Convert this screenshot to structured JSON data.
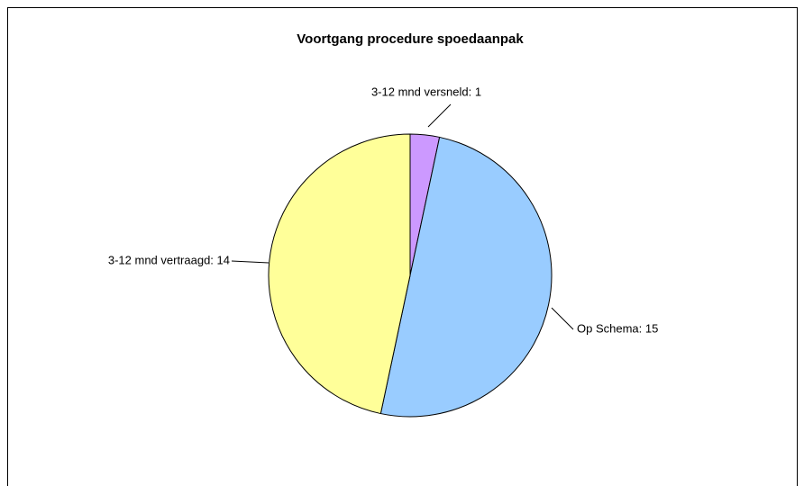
{
  "chart_data": {
    "type": "pie",
    "title": "Voortgang procedure spoedaanpak",
    "labels": [
      "3-12 mnd versneld: 1",
      "Op Schema: 15",
      "3-12 mnd vertraagd: 14"
    ],
    "values": [
      1,
      15,
      14
    ],
    "colors": [
      "#cc99ff",
      "#99ccff",
      "#ffff99"
    ]
  }
}
